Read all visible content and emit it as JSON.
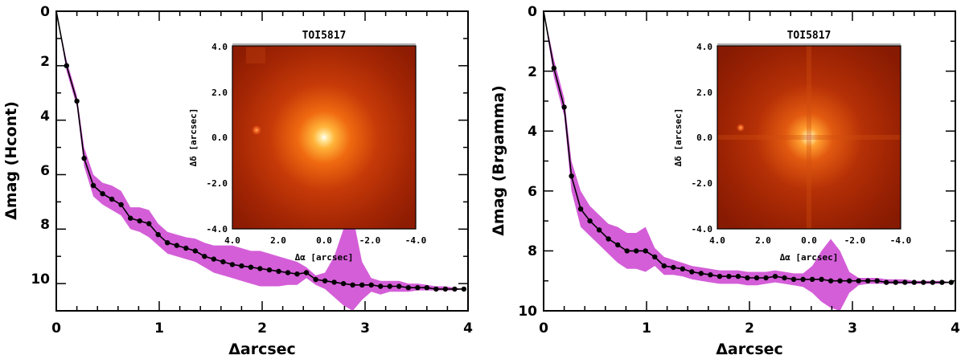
{
  "colors": {
    "band": "#d45ed8",
    "line": "#000000"
  },
  "chart_data": [
    {
      "type": "line",
      "xlabel": "Δarcsec",
      "ylabel": "Δmag (Hcont)",
      "xlim": [
        0,
        4
      ],
      "ylim": [
        11,
        0
      ],
      "x_ticks": [
        "0",
        "1",
        "2",
        "3",
        "4"
      ],
      "y_ticks": [
        "0",
        "2",
        "4",
        "6",
        "8",
        "10"
      ],
      "x": [
        0.0,
        0.1,
        0.2,
        0.27,
        0.36,
        0.45,
        0.54,
        0.63,
        0.72,
        0.81,
        0.9,
        0.99,
        1.08,
        1.17,
        1.26,
        1.35,
        1.44,
        1.53,
        1.62,
        1.71,
        1.8,
        1.89,
        1.98,
        2.07,
        2.16,
        2.25,
        2.34,
        2.43,
        2.52,
        2.61,
        2.7,
        2.79,
        2.88,
        2.97,
        3.06,
        3.15,
        3.24,
        3.33,
        3.42,
        3.51,
        3.6,
        3.69,
        3.78,
        3.87,
        3.96
      ],
      "y": [
        0.0,
        2.0,
        3.3,
        5.4,
        6.4,
        6.7,
        6.9,
        7.1,
        7.6,
        7.7,
        7.8,
        8.2,
        8.5,
        8.6,
        8.7,
        8.8,
        9.0,
        9.1,
        9.2,
        9.3,
        9.35,
        9.4,
        9.45,
        9.5,
        9.55,
        9.6,
        9.65,
        9.6,
        9.85,
        9.9,
        9.95,
        10.0,
        10.05,
        10.05,
        10.05,
        10.1,
        10.1,
        10.1,
        10.15,
        10.15,
        10.15,
        10.2,
        10.2,
        10.2,
        10.2
      ],
      "band_lower": [
        0.0,
        1.8,
        3.1,
        5.0,
        6.0,
        6.3,
        6.4,
        6.6,
        7.2,
        7.2,
        7.3,
        7.8,
        8.1,
        8.2,
        8.3,
        8.35,
        8.5,
        8.6,
        8.6,
        8.6,
        8.7,
        8.8,
        8.8,
        8.9,
        9.0,
        9.1,
        9.2,
        9.4,
        9.7,
        9.6,
        9.0,
        8.0,
        7.5,
        9.2,
        9.8,
        9.9,
        9.9,
        9.9,
        10.0,
        10.0,
        10.05,
        10.1,
        10.1,
        10.15,
        10.2
      ],
      "band_upper": [
        0.0,
        2.2,
        3.5,
        5.7,
        6.8,
        7.1,
        7.3,
        7.5,
        8.0,
        8.1,
        8.3,
        8.6,
        8.9,
        9.0,
        9.1,
        9.2,
        9.4,
        9.6,
        9.7,
        9.8,
        9.9,
        10.0,
        10.1,
        10.1,
        10.1,
        10.05,
        10.05,
        9.8,
        10.05,
        10.2,
        10.5,
        10.8,
        11.0,
        10.6,
        10.3,
        10.4,
        10.3,
        10.3,
        10.3,
        10.25,
        10.25,
        10.25,
        10.25,
        10.25,
        10.2
      ],
      "inset": {
        "title": "TOI5817",
        "xlabel": "Δα [arcsec]",
        "ylabel": "Δδ [arcsec]",
        "x_ticks": [
          "4.0",
          "2.0",
          "0.0",
          "-2.0",
          "-4.0"
        ],
        "y_ticks": [
          "4.0",
          "2.0",
          "0.0",
          "-2.0",
          "-4.0"
        ]
      }
    },
    {
      "type": "line",
      "xlabel": "Δarcsec",
      "ylabel": "Δmag (Brgamma)",
      "xlim": [
        0,
        4
      ],
      "ylim": [
        10,
        0
      ],
      "x_ticks": [
        "0",
        "1",
        "2",
        "3",
        "4"
      ],
      "y_ticks": [
        "0",
        "2",
        "4",
        "6",
        "8",
        "10"
      ],
      "x": [
        0.0,
        0.1,
        0.2,
        0.27,
        0.36,
        0.45,
        0.54,
        0.63,
        0.72,
        0.81,
        0.9,
        0.99,
        1.08,
        1.17,
        1.26,
        1.35,
        1.44,
        1.53,
        1.62,
        1.71,
        1.8,
        1.89,
        1.98,
        2.07,
        2.16,
        2.25,
        2.34,
        2.43,
        2.52,
        2.61,
        2.7,
        2.79,
        2.88,
        2.97,
        3.06,
        3.15,
        3.24,
        3.33,
        3.42,
        3.51,
        3.6,
        3.69,
        3.78,
        3.87,
        3.96
      ],
      "y": [
        0.0,
        1.9,
        3.2,
        5.5,
        6.6,
        7.0,
        7.3,
        7.6,
        7.8,
        8.0,
        8.0,
        8.0,
        8.2,
        8.5,
        8.55,
        8.6,
        8.7,
        8.75,
        8.8,
        8.85,
        8.85,
        8.85,
        8.9,
        8.9,
        8.9,
        8.85,
        8.9,
        8.95,
        8.95,
        8.95,
        8.95,
        9.0,
        9.0,
        9.0,
        9.0,
        9.0,
        9.0,
        9.05,
        9.05,
        9.05,
        9.05,
        9.05,
        9.05,
        9.05,
        9.05
      ],
      "band_lower": [
        0.0,
        1.6,
        2.9,
        5.0,
        6.0,
        6.5,
        6.8,
        7.1,
        7.2,
        7.4,
        7.4,
        7.2,
        7.9,
        8.2,
        8.3,
        8.4,
        8.5,
        8.55,
        8.6,
        8.65,
        8.65,
        8.65,
        8.7,
        8.7,
        8.7,
        8.65,
        8.7,
        8.75,
        8.75,
        8.5,
        8.0,
        7.6,
        8.0,
        8.7,
        8.9,
        8.9,
        8.9,
        8.95,
        8.95,
        8.95,
        9.0,
        9.0,
        9.0,
        9.0,
        9.05
      ],
      "band_upper": [
        0.0,
        2.2,
        3.5,
        6.0,
        7.2,
        7.5,
        7.8,
        8.1,
        8.4,
        8.6,
        8.6,
        8.7,
        8.5,
        8.8,
        8.8,
        8.85,
        8.95,
        9.0,
        9.05,
        9.1,
        9.1,
        9.1,
        9.15,
        9.15,
        9.1,
        9.05,
        9.1,
        9.15,
        9.2,
        9.4,
        9.7,
        9.9,
        10.0,
        9.4,
        9.15,
        9.1,
        9.1,
        9.1,
        9.1,
        9.1,
        9.1,
        9.1,
        9.1,
        9.1,
        9.05
      ],
      "inset": {
        "title": "TOI5817",
        "xlabel": "Δα [arcsec]",
        "ylabel": "Δδ [arcsec]",
        "x_ticks": [
          "4.0",
          "2.0",
          "0.0",
          "-2.0",
          "-4.0"
        ],
        "y_ticks": [
          "4.0",
          "2.0",
          "0.0",
          "-2.0",
          "-4.0"
        ]
      }
    }
  ]
}
